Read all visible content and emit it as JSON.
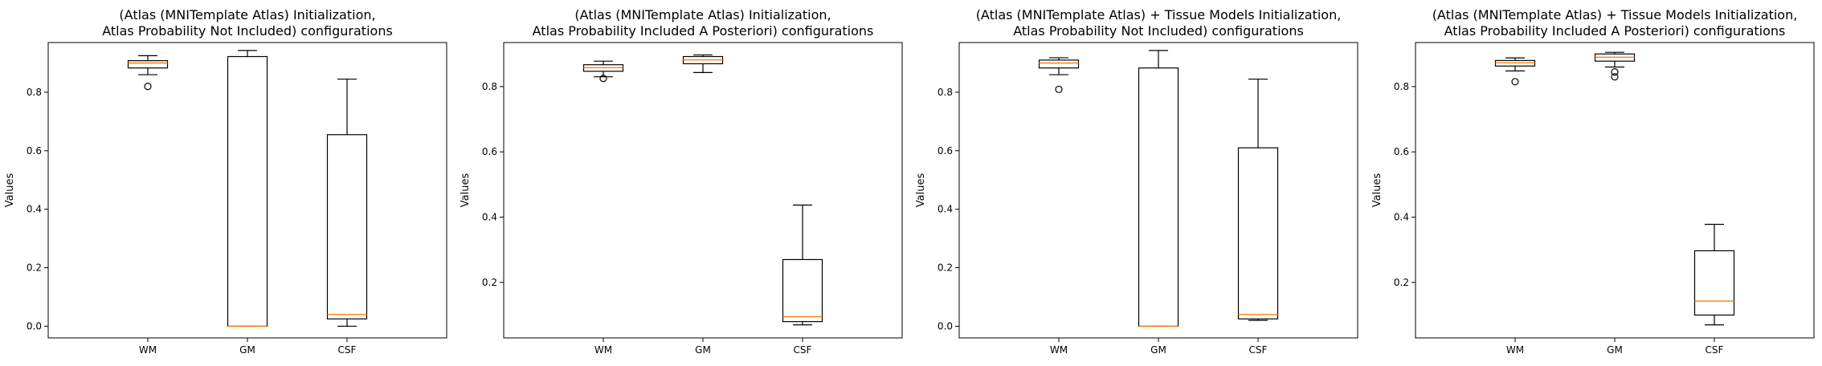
{
  "chart_data": [
    {
      "type": "box",
      "title": [
        "(Atlas (MNITemplate Atlas) Initialization,",
        "Atlas Probability Not Included) configurations"
      ],
      "xlabel": "",
      "ylabel": "Values",
      "ylim": [
        -0.04,
        0.97
      ],
      "yticks": [
        0.0,
        0.2,
        0.4,
        0.6,
        0.8
      ],
      "ytick_labels": [
        "0.0",
        "0.2",
        "0.4",
        "0.6",
        "0.8"
      ],
      "categories": [
        "WM",
        "GM",
        "CSF"
      ],
      "boxes": [
        {
          "whisker_low": 0.86,
          "q1": 0.883,
          "median": 0.9,
          "q3": 0.908,
          "whisker_high": 0.925,
          "outliers": [
            0.82
          ]
        },
        {
          "whisker_low": 0.0,
          "q1": 0.0,
          "median": 0.0,
          "q3": 0.922,
          "whisker_high": 0.943,
          "outliers": []
        },
        {
          "whisker_low": 0.0,
          "q1": 0.025,
          "median": 0.04,
          "q3": 0.655,
          "whisker_high": 0.845,
          "outliers": []
        }
      ]
    },
    {
      "type": "box",
      "title": [
        "(Atlas (MNITemplate Atlas) Initialization,",
        "Atlas Probability Included A Posteriori) configurations"
      ],
      "xlabel": "",
      "ylabel": "Values",
      "ylim": [
        0.03,
        0.935
      ],
      "yticks": [
        0.2,
        0.4,
        0.6,
        0.8
      ],
      "ytick_labels": [
        "0.2",
        "0.4",
        "0.6",
        "0.8"
      ],
      "categories": [
        "WM",
        "GM",
        "CSF"
      ],
      "boxes": [
        {
          "whisker_low": 0.83,
          "q1": 0.847,
          "median": 0.858,
          "q3": 0.867,
          "whisker_high": 0.878,
          "outliers": [
            0.825
          ]
        },
        {
          "whisker_low": 0.843,
          "q1": 0.87,
          "median": 0.882,
          "q3": 0.892,
          "whisker_high": 0.897,
          "outliers": []
        },
        {
          "whisker_low": 0.07,
          "q1": 0.08,
          "median": 0.095,
          "q3": 0.27,
          "whisker_high": 0.437,
          "outliers": []
        }
      ]
    },
    {
      "type": "box",
      "title": [
        "(Atlas (MNITemplate Atlas) + Tissue Models Initialization,",
        "Atlas Probability Not Included) configurations"
      ],
      "xlabel": "",
      "ylabel": "Values",
      "ylim": [
        -0.04,
        0.97
      ],
      "yticks": [
        0.0,
        0.2,
        0.4,
        0.6,
        0.8
      ],
      "ytick_labels": [
        "0.0",
        "0.2",
        "0.4",
        "0.6",
        "0.8"
      ],
      "categories": [
        "WM",
        "GM",
        "CSF"
      ],
      "boxes": [
        {
          "whisker_low": 0.86,
          "q1": 0.883,
          "median": 0.9,
          "q3": 0.91,
          "whisker_high": 0.918,
          "outliers": [
            0.81
          ]
        },
        {
          "whisker_low": 0.0,
          "q1": 0.0,
          "median": 0.0,
          "q3": 0.883,
          "whisker_high": 0.943,
          "outliers": []
        },
        {
          "whisker_low": 0.02,
          "q1": 0.025,
          "median": 0.04,
          "q3": 0.61,
          "whisker_high": 0.845,
          "outliers": []
        }
      ]
    },
    {
      "type": "box",
      "title": [
        "(Atlas (MNITemplate Atlas) + Tissue Models Initialization,",
        "Atlas Probability Included A Posteriori) configurations"
      ],
      "xlabel": "",
      "ylabel": "Values",
      "ylim": [
        0.03,
        0.935
      ],
      "yticks": [
        0.2,
        0.4,
        0.6,
        0.8
      ],
      "ytick_labels": [
        "0.2",
        "0.4",
        "0.6",
        "0.8"
      ],
      "categories": [
        "WM",
        "GM",
        "CSF"
      ],
      "boxes": [
        {
          "whisker_low": 0.848,
          "q1": 0.863,
          "median": 0.873,
          "q3": 0.88,
          "whisker_high": 0.888,
          "outliers": [
            0.815
          ]
        },
        {
          "whisker_low": 0.86,
          "q1": 0.878,
          "median": 0.89,
          "q3": 0.9,
          "whisker_high": 0.905,
          "outliers": [
            0.845,
            0.83
          ]
        },
        {
          "whisker_low": 0.07,
          "q1": 0.1,
          "median": 0.143,
          "q3": 0.297,
          "whisker_high": 0.378,
          "outliers": []
        }
      ]
    }
  ],
  "colors": {
    "box": "#000000",
    "median": "#ff7f0e",
    "background": "#ffffff"
  }
}
